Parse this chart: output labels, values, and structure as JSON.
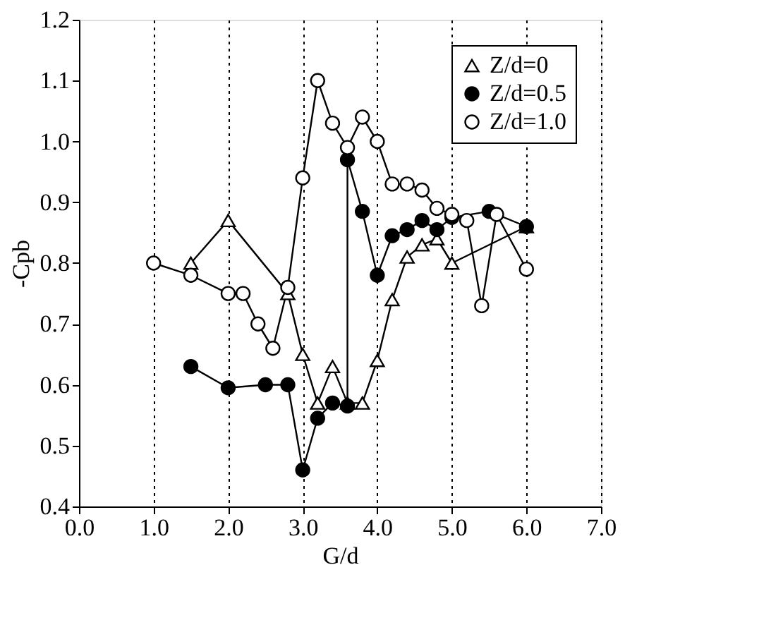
{
  "chart_data": {
    "type": "line",
    "xlabel": "G/d",
    "ylabel": "-Cpb",
    "xlim": [
      0,
      7
    ],
    "ylim": [
      0.4,
      1.2
    ],
    "xticks": [
      {
        "value": 0,
        "label": "0.0"
      },
      {
        "value": 1,
        "label": "1.0"
      },
      {
        "value": 2,
        "label": "2.0"
      },
      {
        "value": 3,
        "label": "3.0"
      },
      {
        "value": 4,
        "label": "4.0"
      },
      {
        "value": 5,
        "label": "5.0"
      },
      {
        "value": 6,
        "label": "6.0"
      },
      {
        "value": 7,
        "label": "7.0"
      }
    ],
    "yticks": [
      0.4,
      0.5,
      0.6,
      0.7,
      0.8,
      0.9,
      {
        "value": 1,
        "label": "1.0"
      },
      1.1,
      1.2
    ],
    "grid": "x",
    "legend": "top right",
    "line_style": "solid",
    "series": [
      {
        "name": "Z/d=0",
        "color": "#000000",
        "colors": [
          "#ffffff",
          "#ffffff",
          "#ffffff",
          "#ffffff",
          "#ffffff",
          "#ffffff",
          "#ffffff",
          "#ffffff",
          "#ffffff",
          "#ffffff",
          "#ffffff",
          "#ffffff",
          "#ffffff",
          "#ffffff",
          "#ffffff"
        ],
        "marker": "triangle",
        "x": [
          1.5,
          2.0,
          2.8,
          3.0,
          3.2,
          3.4,
          3.6,
          3.8,
          4.0,
          4.2,
          4.4,
          4.6,
          4.8,
          5.0,
          6.0
        ],
        "values": [
          0.8,
          0.87,
          0.75,
          0.65,
          0.57,
          0.63,
          0.57,
          0.57,
          0.64,
          0.74,
          0.81,
          0.83,
          0.84,
          0.8,
          0.86
        ]
      },
      {
        "name": "Z/d=0.5",
        "color": "#000000",
        "marker": "circle",
        "x": [
          1.5,
          2.0,
          2.5,
          2.8,
          3.0,
          3.2,
          3.4,
          3.6,
          3.6,
          3.8,
          4.0,
          4.2,
          4.4,
          4.6,
          4.8,
          5.0,
          5.5,
          6.0
        ],
        "values": [
          0.63,
          0.595,
          0.6,
          0.6,
          0.46,
          0.545,
          0.57,
          0.565,
          0.97,
          0.885,
          0.78,
          0.845,
          0.855,
          0.87,
          0.855,
          0.875,
          0.885,
          0.86
        ]
      },
      {
        "name": "Z/d=1.0",
        "color": "#000000",
        "colors": [
          "#ffffff",
          "#ffffff",
          "#ffffff",
          "#ffffff",
          "#ffffff",
          "#ffffff",
          "#ffffff",
          "#ffffff",
          "#ffffff",
          "#ffffff",
          "#ffffff",
          "#ffffff",
          "#ffffff",
          "#ffffff",
          "#ffffff",
          "#ffffff",
          "#ffffff",
          "#ffffff",
          "#ffffff",
          "#ffffff",
          "#ffffff",
          "#ffffff"
        ],
        "marker": "circle",
        "x": [
          1.0,
          1.5,
          2.0,
          2.2,
          2.4,
          2.6,
          2.8,
          3.0,
          3.2,
          3.4,
          3.6,
          3.8,
          4.0,
          4.2,
          4.4,
          4.6,
          4.8,
          5.0,
          5.2,
          5.4,
          5.6,
          6.0
        ],
        "values": [
          0.8,
          0.78,
          0.75,
          0.75,
          0.7,
          0.66,
          0.76,
          0.94,
          1.1,
          1.03,
          0.99,
          1.04,
          1.0,
          0.93,
          0.93,
          0.92,
          0.89,
          0.88,
          0.87,
          0.73,
          0.88,
          0.79
        ]
      }
    ]
  }
}
